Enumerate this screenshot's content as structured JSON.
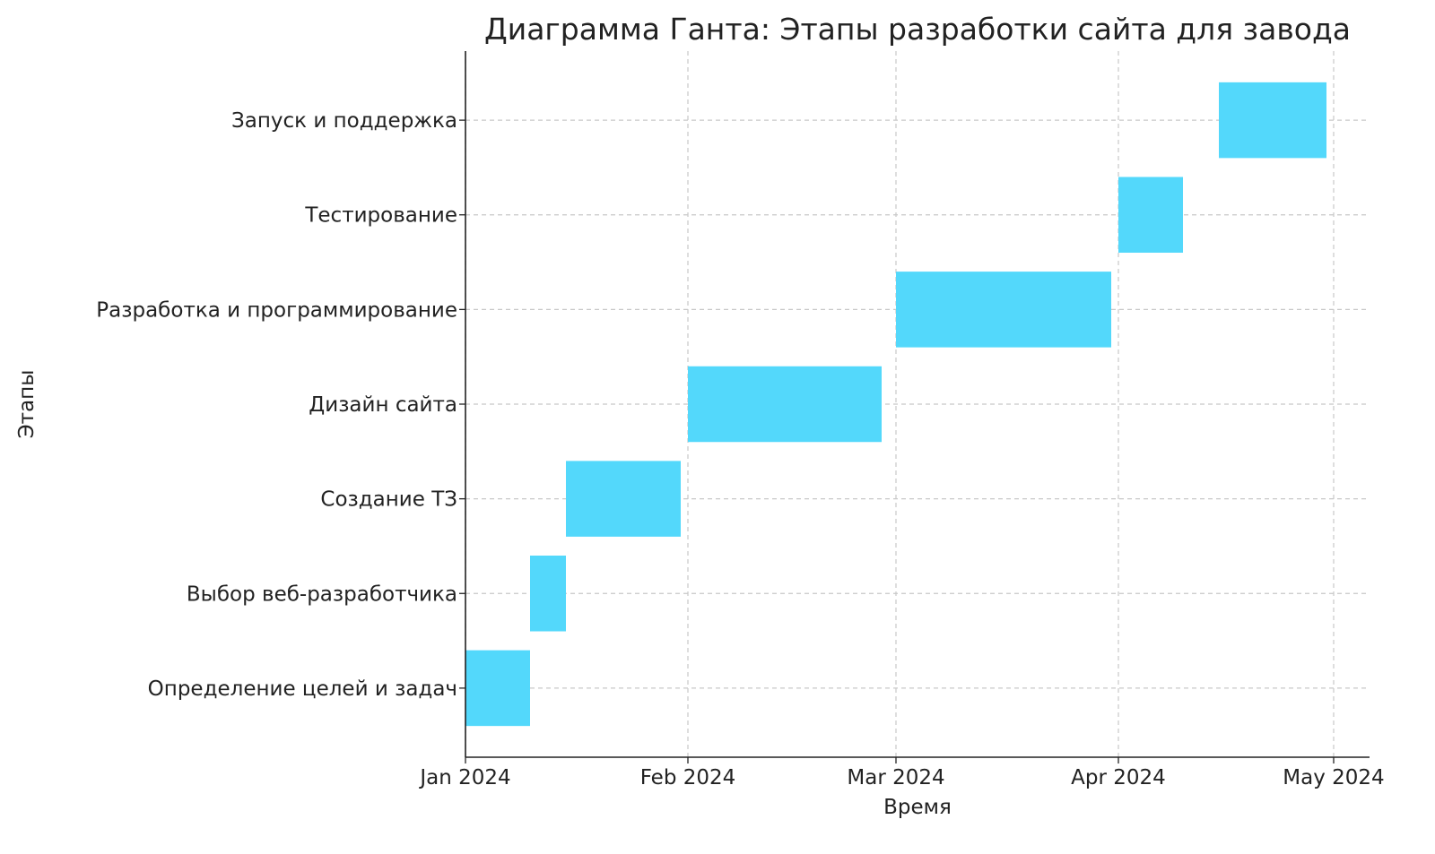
{
  "chart_data": {
    "type": "gantt",
    "title": "Диаграмма Ганта: Этапы разработки сайта для завода",
    "xlabel": "Время",
    "ylabel": "Этапы",
    "xlim": [
      "2024-01-01",
      "2024-05-06"
    ],
    "x_ticks": [
      {
        "date": "2024-01-01",
        "label": "Jan 2024"
      },
      {
        "date": "2024-02-01",
        "label": "Feb 2024"
      },
      {
        "date": "2024-03-01",
        "label": "Mar 2024"
      },
      {
        "date": "2024-04-01",
        "label": "Apr 2024"
      },
      {
        "date": "2024-05-01",
        "label": "May 2024"
      }
    ],
    "grid": true,
    "bar_color": "#53d8fb",
    "tasks": [
      {
        "name": "Определение целей и задач",
        "start": "2024-01-01",
        "end": "2024-01-10"
      },
      {
        "name": "Выбор веб-разработчика",
        "start": "2024-01-10",
        "end": "2024-01-15"
      },
      {
        "name": "Создание ТЗ",
        "start": "2024-01-15",
        "end": "2024-01-31"
      },
      {
        "name": "Дизайн сайта",
        "start": "2024-02-01",
        "end": "2024-02-28"
      },
      {
        "name": "Разработка и программирование",
        "start": "2024-03-01",
        "end": "2024-03-31"
      },
      {
        "name": "Тестирование",
        "start": "2024-04-01",
        "end": "2024-04-10"
      },
      {
        "name": "Запуск и поддержка",
        "start": "2024-04-15",
        "end": "2024-04-30"
      }
    ]
  }
}
